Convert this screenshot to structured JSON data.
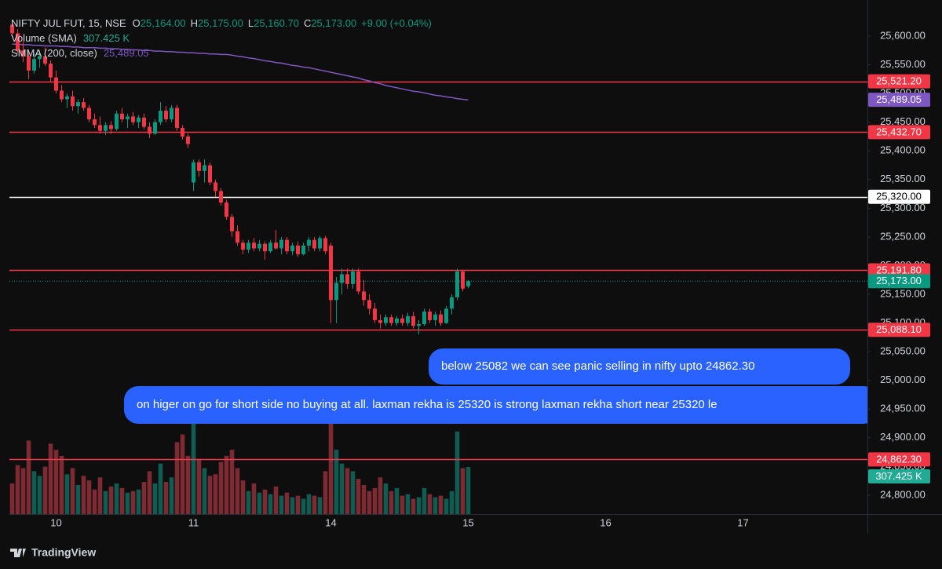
{
  "chart_data": {
    "type": "candlestick",
    "title": "NIFTY JUL FUT, 15, NSE",
    "ohlc_legend": [
      {
        "label": "O",
        "value": "25,164.00"
      },
      {
        "label": "H",
        "value": "25,175.00"
      },
      {
        "label": "L",
        "value": "25,160.70"
      },
      {
        "label": "C",
        "value": "25,173.00"
      }
    ],
    "change": "+9.00 (+0.04%)",
    "categories": [
      null,
      null,
      null,
      null,
      null,
      null,
      null,
      null,
      "10",
      null,
      null,
      null,
      null,
      null,
      null,
      null,
      null,
      null,
      null,
      null,
      null,
      null,
      null,
      null,
      null,
      null,
      null,
      null,
      null,
      null,
      null,
      null,
      null,
      "11",
      null,
      null,
      null,
      null,
      null,
      null,
      null,
      null,
      null,
      null,
      null,
      null,
      null,
      null,
      null,
      null,
      null,
      null,
      null,
      null,
      null,
      null,
      null,
      null,
      "14",
      null,
      null,
      null,
      null,
      null,
      null,
      null,
      null,
      null,
      null,
      null,
      null,
      null,
      null,
      null,
      null,
      null,
      null,
      null,
      null,
      null,
      null,
      null,
      null,
      "15",
      null,
      null,
      null,
      null,
      null,
      null,
      null,
      null,
      null,
      null,
      null,
      null,
      null,
      null,
      null,
      null,
      null,
      null,
      null,
      null,
      null,
      null,
      null,
      null,
      "16",
      null,
      null,
      null,
      null,
      null,
      null,
      null,
      null,
      null,
      null,
      null,
      null,
      null,
      null,
      null,
      null,
      null,
      null,
      null,
      null,
      null,
      null,
      null,
      null,
      "17"
    ],
    "open": [
      25620,
      25605,
      25575,
      25565,
      25540,
      25560,
      25565,
      25552,
      25528,
      25505,
      25490,
      25495,
      25478,
      25485,
      25475,
      25455,
      25445,
      25435,
      25445,
      25438,
      25465,
      25455,
      25460,
      25450,
      25458,
      25442,
      25430,
      25450,
      25470,
      25455,
      25475,
      25440,
      25425,
      25345,
      25380,
      25365,
      25375,
      25345,
      25330,
      25310,
      25285,
      25260,
      25240,
      25228,
      25240,
      25230,
      25238,
      25225,
      25240,
      25230,
      25245,
      25225,
      25235,
      25220,
      25235,
      25245,
      25230,
      25248,
      25235,
      25140,
      25170,
      25185,
      25168,
      25190,
      25155,
      25140,
      25125,
      25105,
      25100,
      25110,
      25100,
      25108,
      25100,
      25112,
      25095,
      25098,
      25120,
      25105,
      25115,
      25100,
      25125,
      25145,
      25190,
      25164,
      null,
      null,
      null,
      null,
      null,
      null,
      null,
      null,
      null,
      null,
      null,
      null,
      null,
      null,
      null,
      null,
      null,
      null,
      null,
      null,
      null,
      null,
      null,
      null,
      null,
      null,
      null,
      null,
      null,
      null,
      null,
      null,
      null,
      null,
      null,
      null,
      null,
      null,
      null,
      null,
      null,
      null,
      null,
      null,
      null,
      null,
      null,
      null,
      null,
      null
    ],
    "high": [
      25625,
      25612,
      25590,
      25575,
      25570,
      25575,
      25580,
      25558,
      25540,
      25515,
      25500,
      25505,
      25490,
      25492,
      25480,
      25465,
      25460,
      25450,
      25452,
      25470,
      25475,
      25465,
      25468,
      25462,
      25465,
      25450,
      25455,
      25485,
      25478,
      25480,
      25480,
      25445,
      25430,
      25385,
      25385,
      25385,
      25380,
      25350,
      25335,
      25315,
      25290,
      25270,
      25245,
      25245,
      25248,
      25245,
      25242,
      25245,
      25262,
      25250,
      25250,
      25240,
      25242,
      25240,
      25250,
      25250,
      25252,
      25252,
      25240,
      25180,
      25195,
      25195,
      25195,
      25195,
      25175,
      25150,
      25135,
      25115,
      25115,
      25115,
      25112,
      25115,
      25118,
      25120,
      25105,
      25125,
      25125,
      25120,
      25122,
      25130,
      25150,
      25195,
      25193,
      25175,
      null,
      null,
      null,
      null,
      null,
      null,
      null,
      null,
      null,
      null,
      null,
      null,
      null,
      null,
      null,
      null,
      null,
      null,
      null,
      null,
      null,
      null,
      null,
      null,
      null,
      null,
      null,
      null,
      null,
      null,
      null,
      null,
      null,
      null,
      null,
      null,
      null,
      null,
      null,
      null,
      null,
      null,
      null,
      null,
      null,
      null,
      null,
      null,
      null,
      null
    ],
    "low": [
      25600,
      25570,
      25555,
      25525,
      25535,
      25545,
      25548,
      25520,
      25500,
      25485,
      25475,
      25470,
      25465,
      25470,
      25450,
      25440,
      25430,
      25428,
      25430,
      25435,
      25450,
      25440,
      25445,
      25440,
      25438,
      25422,
      25428,
      25445,
      25450,
      25450,
      25435,
      25420,
      25405,
      25330,
      25355,
      25345,
      25340,
      25320,
      25305,
      25280,
      25250,
      25235,
      25220,
      25222,
      25225,
      25225,
      25210,
      25222,
      25228,
      25220,
      25220,
      25218,
      25215,
      25218,
      25225,
      25225,
      25225,
      25220,
      25100,
      25100,
      25150,
      25160,
      25160,
      25150,
      25130,
      25115,
      25100,
      25090,
      25095,
      25095,
      25095,
      25095,
      25095,
      25090,
      25080,
      25095,
      25100,
      25095,
      25095,
      25098,
      25115,
      25140,
      25155,
      25160.7,
      null,
      null,
      null,
      null,
      null,
      null,
      null,
      null,
      null,
      null,
      null,
      null,
      null,
      null,
      null,
      null,
      null,
      null,
      null,
      null,
      null,
      null,
      null,
      null,
      null,
      null,
      null,
      null,
      null,
      null,
      null,
      null,
      null,
      null,
      null,
      null,
      null,
      null,
      null,
      null,
      null,
      null,
      null,
      null,
      null,
      null,
      null,
      null,
      null,
      null
    ],
    "close": [
      25605,
      25575,
      25565,
      25540,
      25560,
      25565,
      25552,
      25528,
      25505,
      25490,
      25495,
      25478,
      25485,
      25475,
      25455,
      25445,
      25435,
      25445,
      25438,
      25465,
      25455,
      25460,
      25450,
      25458,
      25442,
      25430,
      25450,
      25470,
      25455,
      25475,
      25440,
      25425,
      25412,
      25380,
      25365,
      25375,
      25345,
      25330,
      25310,
      25285,
      25260,
      25240,
      25228,
      25240,
      25230,
      25238,
      25225,
      25240,
      25230,
      25245,
      25225,
      25235,
      25220,
      25235,
      25245,
      25230,
      25248,
      25225,
      25140,
      25170,
      25185,
      25168,
      25190,
      25155,
      25140,
      25125,
      25105,
      25100,
      25110,
      25100,
      25108,
      25100,
      25112,
      25095,
      25098,
      25120,
      25105,
      25115,
      25100,
      25125,
      25145,
      25190,
      25160,
      25173,
      null,
      null,
      null,
      null,
      null,
      null,
      null,
      null,
      null,
      null,
      null,
      null,
      null,
      null,
      null,
      null,
      null,
      null,
      null,
      null,
      null,
      null,
      null,
      null,
      null,
      null,
      null,
      null,
      null,
      null,
      null,
      null,
      null,
      null,
      null,
      null,
      null,
      null,
      null,
      null,
      null,
      null,
      null,
      null,
      null,
      null,
      null,
      null,
      null,
      null
    ],
    "up_color": "#089981",
    "down_color": "#f23645",
    "volume": {
      "name": "Volume (SMA)",
      "value_label": "307.425 K",
      "label_color": "#22ab94",
      "up_color": "#0e5c52",
      "down_color": "#7d2a33",
      "values": [
        200,
        320,
        300,
        480,
        280,
        250,
        310,
        460,
        420,
        380,
        260,
        300,
        190,
        250,
        220,
        160,
        240,
        150,
        180,
        200,
        170,
        140,
        150,
        160,
        210,
        280,
        200,
        330,
        210,
        240,
        470,
        520,
        380,
        600,
        360,
        300,
        250,
        260,
        340,
        380,
        420,
        300,
        220,
        150,
        200,
        140,
        160,
        130,
        180,
        120,
        140,
        110,
        120,
        100,
        130,
        120,
        110,
        280,
        620,
        420,
        330,
        300,
        280,
        230,
        190,
        150,
        170,
        240,
        200,
        150,
        170,
        120,
        130,
        100,
        110,
        170,
        130,
        110,
        120,
        100,
        150,
        540,
        300,
        307.425,
        null,
        null,
        null,
        null,
        null,
        null,
        null,
        null,
        null,
        null,
        null,
        null,
        null,
        null,
        null,
        null,
        null,
        null,
        null,
        null,
        null,
        null,
        null,
        null,
        null,
        null,
        null,
        null,
        null,
        null,
        null,
        null,
        null,
        null,
        null,
        null,
        null,
        null,
        null,
        null,
        null,
        null,
        null,
        null,
        null,
        null,
        null,
        null,
        null,
        null
      ]
    },
    "smma": {
      "name": "SMMA (200, close)",
      "color": "#7e57c2",
      "value_label": "25,489.05",
      "values": [
        25586,
        25586,
        25585,
        25585,
        25584,
        25584,
        25583,
        25583,
        25583,
        25582,
        25582,
        25581,
        25581,
        25580,
        25580,
        25580,
        25579,
        25579,
        25578,
        25578,
        25577,
        25577,
        25576,
        25576,
        25575,
        25575,
        25574,
        25574,
        25573,
        25573,
        25572,
        25572,
        25571,
        25571,
        25570,
        25570,
        25569,
        25569,
        25568,
        25568,
        25567,
        25565,
        25564,
        25562,
        25561,
        25559,
        25557,
        25556,
        25554,
        25553,
        25551,
        25549,
        25548,
        25546,
        25545,
        25543,
        25541,
        25539,
        25537,
        25535,
        25533,
        25531,
        25529,
        25527,
        25524,
        25522,
        25519,
        25517,
        25514,
        25512,
        25510,
        25508,
        25506,
        25504,
        25503,
        25501,
        25499,
        25497,
        25496,
        25494,
        25493,
        25491,
        25490,
        25489.05,
        null,
        null,
        null,
        null,
        null,
        null,
        null,
        null,
        null,
        null,
        null,
        null,
        null,
        null,
        null,
        null,
        null,
        null,
        null,
        null,
        null,
        null,
        null,
        null,
        null,
        null,
        null,
        null,
        null,
        null,
        null,
        null,
        null,
        null,
        null,
        null,
        null,
        null,
        null,
        null,
        null,
        null,
        null,
        null,
        null,
        null,
        null,
        null,
        null,
        null
      ]
    },
    "last_price": {
      "value": 25173,
      "label": "25,173.00",
      "color": "#089981"
    },
    "levels": [
      {
        "value": 25521.2,
        "label": "25,521.20",
        "color": "#f23645"
      },
      {
        "value": 25432.7,
        "label": "25,432.70",
        "color": "#f23645"
      },
      {
        "value": 25320,
        "label": "25,320.00",
        "color": "#ffffff"
      },
      {
        "value": 25191.8,
        "label": "25,191.80",
        "color": "#f23645"
      },
      {
        "value": 25088.1,
        "label": "25,088.10",
        "color": "#f23645"
      },
      {
        "value": 24862.3,
        "label": "24,862.30",
        "color": "#f23645"
      }
    ],
    "ylim": [
      24767,
      25663
    ],
    "yticks": [
      {
        "value": 25600,
        "label": "25,600.00"
      },
      {
        "value": 25550,
        "label": "25,550.00"
      },
      {
        "value": 25500,
        "label": "25,500.00"
      },
      {
        "value": 25450,
        "label": "25,450.00"
      },
      {
        "value": 25400,
        "label": "25,400.00"
      },
      {
        "value": 25350,
        "label": "25,350.00"
      },
      {
        "value": 25300,
        "label": "25,300.00"
      },
      {
        "value": 25250,
        "label": "25,250.00"
      },
      {
        "value": 25200,
        "label": "25,200.00"
      },
      {
        "value": 25150,
        "label": "25,150.00"
      },
      {
        "value": 25100,
        "label": "25,100.00"
      },
      {
        "value": 25050,
        "label": "25,050.00"
      },
      {
        "value": 25000,
        "label": "25,000.00"
      },
      {
        "value": 24950,
        "label": "24,950.00"
      },
      {
        "value": 24900,
        "label": "24,900.00"
      },
      {
        "value": 24850,
        "label": "24,850.00"
      },
      {
        "value": 24800,
        "label": "24,800.00"
      }
    ],
    "annotations": [
      {
        "text": "below 25082 we can see panic selling in nifty upto 24862.30",
        "color": "#2962ff"
      },
      {
        "text": "on higer on go for short side no buying at all. laxman rekha is 25320 is strong laxman rekha short near 25320 le",
        "color": "#2962ff"
      }
    ],
    "watermark": "TradingView"
  }
}
